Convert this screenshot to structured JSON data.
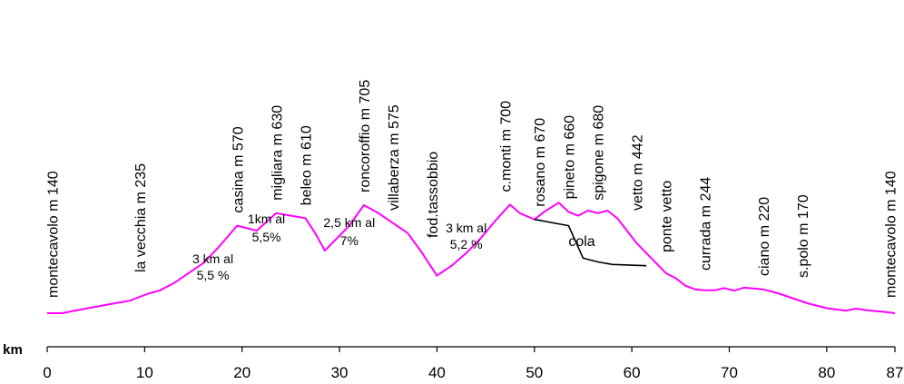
{
  "chart_data": {
    "type": "line",
    "xlabel": "km",
    "xlim": [
      0,
      87
    ],
    "x_ticks": [
      "0",
      "10",
      "20",
      "30",
      "40",
      "50",
      "60",
      "70",
      "80",
      "87"
    ],
    "colors": {
      "profile": "#ff00ff",
      "variant": "#000000",
      "axis": "#000000"
    },
    "series": [
      {
        "color": "#ff00ff",
        "points": [
          [
            0,
            140
          ],
          [
            1.5,
            140
          ],
          [
            3.5,
            155
          ],
          [
            7,
            180
          ],
          [
            8.5,
            190
          ],
          [
            9,
            198
          ],
          [
            10.5,
            220
          ],
          [
            11.5,
            230
          ],
          [
            13,
            260
          ],
          [
            14.5,
            300
          ],
          [
            16,
            340
          ],
          [
            17.5,
            400
          ],
          [
            19.5,
            490
          ],
          [
            21.5,
            470
          ],
          [
            23.5,
            540
          ],
          [
            25,
            530
          ],
          [
            26.5,
            520
          ],
          [
            27.5,
            460
          ],
          [
            28.5,
            390
          ],
          [
            29.5,
            430
          ],
          [
            31,
            490
          ],
          [
            32.5,
            572
          ],
          [
            34,
            540
          ],
          [
            35.5,
            500
          ],
          [
            37,
            460
          ],
          [
            38.5,
            380
          ],
          [
            40,
            290
          ],
          [
            41.5,
            330
          ],
          [
            43,
            380
          ],
          [
            44.5,
            440
          ],
          [
            46,
            510
          ],
          [
            47.5,
            574
          ],
          [
            48.5,
            540
          ],
          [
            50,
            515
          ],
          [
            51,
            545
          ],
          [
            52.5,
            582
          ],
          [
            53.5,
            545
          ],
          [
            54.5,
            530
          ],
          [
            55.5,
            550
          ],
          [
            56.5,
            540
          ],
          [
            57.5,
            550
          ],
          [
            58.5,
            520
          ],
          [
            59.5,
            470
          ],
          [
            60.5,
            420
          ],
          [
            61.5,
            380
          ],
          [
            62.5,
            340
          ],
          [
            63.5,
            300
          ],
          [
            64.5,
            280
          ],
          [
            65.5,
            250
          ],
          [
            66.5,
            235
          ],
          [
            67.5,
            232
          ],
          [
            68.5,
            232
          ],
          [
            69.5,
            240
          ],
          [
            70.5,
            230
          ],
          [
            71.5,
            242
          ],
          [
            73.5,
            235
          ],
          [
            75,
            220
          ],
          [
            76.5,
            200
          ],
          [
            78,
            180
          ],
          [
            80,
            160
          ],
          [
            82,
            150
          ],
          [
            83,
            158
          ],
          [
            84.5,
            150
          ],
          [
            86,
            145
          ],
          [
            87,
            140
          ]
        ]
      },
      {
        "name": "cola",
        "color": "#000000",
        "points": [
          [
            50,
            515
          ],
          [
            53.5,
            490
          ],
          [
            55,
            360
          ],
          [
            56.5,
            345
          ],
          [
            58,
            335
          ],
          [
            61.5,
            330
          ]
        ]
      }
    ],
    "place_labels": [
      {
        "text": "montecavolo m 140",
        "km": 0.5
      },
      {
        "text": "la vecchia m 235",
        "km": 9.5
      },
      {
        "text": "casina m 570",
        "km": 19.5
      },
      {
        "text": "migliara m 630",
        "km": 23.5
      },
      {
        "text": "beleo m 610",
        "km": 26.5
      },
      {
        "text": "roncoroffio m 705",
        "km": 32.5
      },
      {
        "text": "villaberza m 575",
        "km": 35.5
      },
      {
        "text": "fod.tassobbio",
        "km": 39.5
      },
      {
        "text": "c.monti m 700",
        "km": 47
      },
      {
        "text": "rosano m 670",
        "km": 50.5
      },
      {
        "text": "pineto m 660",
        "km": 53.5
      },
      {
        "text": "spigone m 680",
        "km": 56.5
      },
      {
        "text": "vetto m 442",
        "km": 60.5
      },
      {
        "text": "ponte vetto",
        "km": 63.5
      },
      {
        "text": "currada m 244",
        "km": 67.5
      },
      {
        "text": "ciano m 220",
        "km": 73.5
      },
      {
        "text": "s.polo m 170",
        "km": 77.5
      },
      {
        "text": "montecavolo m 140",
        "km": 86.5
      }
    ],
    "gradient_notes": [
      {
        "lines": [
          "3 km al",
          "5,5 %"
        ],
        "km": 17
      },
      {
        "lines": [
          "1km al",
          "5,5%"
        ],
        "km": 22.5
      },
      {
        "lines": [
          "2,5 km al",
          "7%"
        ],
        "km": 31
      },
      {
        "lines": [
          "3 km al",
          "5,2 %"
        ],
        "km": 43
      }
    ],
    "series_labels": [
      {
        "text": "cola",
        "km": 53.5
      }
    ]
  }
}
